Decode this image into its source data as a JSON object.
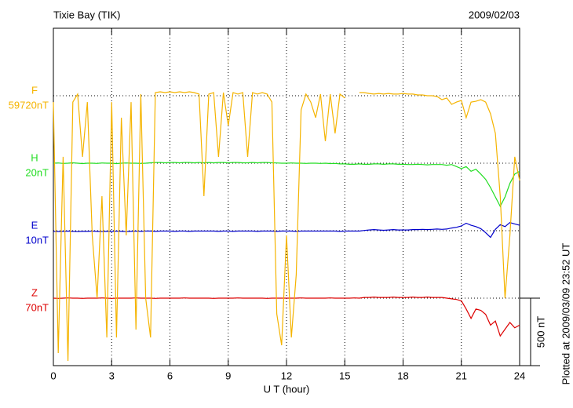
{
  "chart_data": {
    "type": "line",
    "title": "Tixie Bay (TIK)",
    "date": "2009/02/03",
    "xlabel": "U T (hour)",
    "footnote": "Plotted at 2009/03/09 23:52 UT",
    "scale_label": "500 nT",
    "scale_bar": [
      0,
      500
    ],
    "xlim": [
      0,
      24
    ],
    "xticks": [
      0,
      3,
      6,
      9,
      12,
      15,
      18,
      21,
      24
    ],
    "ylim": [
      0,
      2500
    ],
    "yticks": [
      500,
      1000,
      1500,
      2000
    ],
    "grid": true,
    "x": [
      0,
      0.25,
      0.5,
      0.75,
      1,
      1.25,
      1.5,
      1.75,
      2,
      2.25,
      2.5,
      2.75,
      3,
      3.25,
      3.5,
      3.75,
      4,
      4.25,
      4.5,
      4.75,
      5,
      5.25,
      5.5,
      5.75,
      6,
      6.25,
      6.5,
      6.75,
      7,
      7.25,
      7.5,
      7.75,
      8,
      8.25,
      8.5,
      8.75,
      9,
      9.25,
      9.5,
      9.75,
      10,
      10.25,
      10.5,
      10.75,
      11,
      11.25,
      11.5,
      11.75,
      12,
      12.25,
      12.5,
      12.75,
      13,
      13.25,
      13.5,
      13.75,
      14,
      14.25,
      14.5,
      14.75,
      15,
      15.25,
      15.5,
      15.75,
      16,
      16.25,
      16.5,
      16.75,
      17,
      17.25,
      17.5,
      17.75,
      18,
      18.25,
      18.5,
      18.75,
      19,
      19.25,
      19.5,
      19.75,
      20,
      20.25,
      20.5,
      20.75,
      21,
      21.25,
      21.5,
      21.75,
      22,
      22.25,
      22.5,
      22.75,
      23,
      23.25,
      23.5,
      23.75,
      24
    ],
    "series": [
      {
        "name": "H",
        "baseline": "20nT",
        "color": "#22dd22",
        "values": [
          1500,
          1502,
          1498,
          1500,
          1503,
          1500,
          1497,
          1500,
          1500,
          1498,
          1502,
          1500,
          1500,
          1497,
          1500,
          1502,
          1500,
          1500,
          1498,
          1500,
          1503,
          1505,
          1505,
          1503,
          1505,
          1505,
          1503,
          1505,
          1505,
          1503,
          1505,
          1503,
          1505,
          1503,
          1505,
          1505,
          1503,
          1505,
          1505,
          1503,
          1503,
          1505,
          1503,
          1505,
          1505,
          1503,
          1502,
          1500,
          1500,
          1502,
          1500,
          1500,
          1498,
          1500,
          1500,
          1498,
          1500,
          1497,
          1498,
          1495,
          1495,
          1492,
          1492,
          1495,
          1492,
          1492,
          1495,
          1495,
          1492,
          1495,
          1495,
          1492,
          1492,
          1490,
          1490,
          1492,
          1490,
          1488,
          1490,
          1490,
          1490,
          1485,
          1490,
          1475,
          1460,
          1475,
          1440,
          1455,
          1420,
          1380,
          1320,
          1250,
          1180,
          1250,
          1350,
          1420,
          1440
        ]
      },
      {
        "name": "E",
        "baseline": "10nT",
        "color": "#0000cc",
        "values": [
          995,
          993,
          995,
          997,
          995,
          993,
          995,
          995,
          997,
          995,
          993,
          995,
          995,
          997,
          995,
          993,
          995,
          997,
          995,
          997,
          997,
          995,
          997,
          997,
          997,
          995,
          997,
          997,
          995,
          997,
          997,
          997,
          997,
          997,
          995,
          997,
          997,
          995,
          997,
          997,
          997,
          997,
          995,
          997,
          997,
          997,
          995,
          997,
          997,
          997,
          995,
          997,
          997,
          997,
          997,
          997,
          997,
          997,
          997,
          995,
          997,
          997,
          997,
          997,
          1002,
          1005,
          1008,
          1005,
          1003,
          1005,
          1008,
          1005,
          1005,
          1005,
          1008,
          1008,
          1010,
          1008,
          1010,
          1012,
          1010,
          1012,
          1020,
          1025,
          1035,
          1055,
          1040,
          1030,
          1015,
          985,
          950,
          1010,
          1045,
          1030,
          1060,
          1050,
          1040
        ]
      },
      {
        "name": "Z",
        "baseline": "70nT",
        "color": "#dd0000",
        "values": [
          500,
          498,
          500,
          502,
          500,
          500,
          498,
          500,
          500,
          500,
          502,
          500,
          498,
          500,
          500,
          500,
          500,
          502,
          500,
          500,
          500,
          498,
          500,
          500,
          500,
          500,
          500,
          502,
          500,
          500,
          500,
          500,
          500,
          498,
          500,
          500,
          500,
          500,
          502,
          500,
          500,
          500,
          500,
          500,
          498,
          500,
          500,
          500,
          500,
          500,
          500,
          502,
          500,
          500,
          500,
          500,
          500,
          502,
          500,
          500,
          500,
          500,
          502,
          500,
          505,
          505,
          508,
          505,
          505,
          505,
          508,
          505,
          505,
          505,
          508,
          505,
          505,
          508,
          505,
          505,
          505,
          500,
          495,
          490,
          480,
          420,
          350,
          420,
          410,
          380,
          300,
          330,
          220,
          270,
          320,
          280,
          300
        ]
      },
      {
        "name": "F",
        "baseline": "59720nT",
        "color": "#f5b400",
        "values": [
          1953,
          93,
          1547,
          35,
          1953,
          2012,
          1547,
          1953,
          965,
          500,
          1256,
          209,
          1953,
          209,
          1837,
          965,
          1953,
          267,
          2012,
          500,
          209,
          2023,
          2029,
          2023,
          2029,
          2023,
          2029,
          2023,
          2029,
          2023,
          2012,
          1256,
          2012,
          2023,
          1547,
          2023,
          1779,
          2023,
          2012,
          2023,
          1547,
          2023,
          2012,
          2023,
          2012,
          1953,
          384,
          151,
          965,
          209,
          674,
          1895,
          2012,
          1953,
          1837,
          2012,
          1663,
          2012,
          1721,
          2012,
          1983,
          null,
          null,
          2023,
          2023,
          2017,
          2012,
          2017,
          2012,
          2017,
          2012,
          2012,
          2017,
          2012,
          2012,
          2006,
          2006,
          2000,
          2000,
          1994,
          1971,
          1983,
          1936,
          1953,
          1965,
          1837,
          1953,
          1959,
          1971,
          1953,
          1866,
          1721,
          1256,
          500,
          965,
          1547,
          1372
        ]
      }
    ]
  }
}
